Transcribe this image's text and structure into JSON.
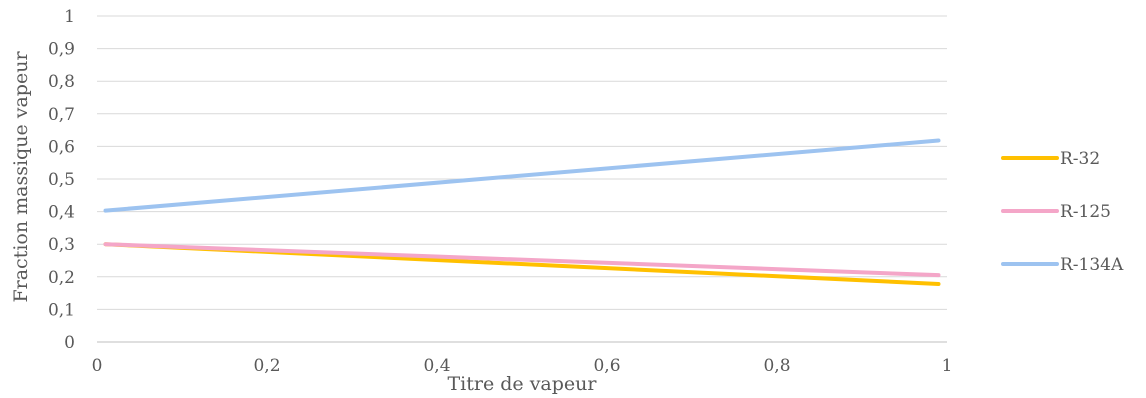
{
  "chart_data": {
    "type": "line",
    "title": "",
    "xlabel": "Titre de vapeur",
    "ylabel": "Fraction massique vapeur",
    "xlim": [
      0,
      1
    ],
    "ylim": [
      0,
      1
    ],
    "x_ticks": [
      "0",
      "0,2",
      "0,4",
      "0,6",
      "0,8",
      "1"
    ],
    "y_ticks": [
      "0",
      "0,1",
      "0,2",
      "0,3",
      "0,4",
      "0,5",
      "0,6",
      "0,7",
      "0,8",
      "0,9",
      "1"
    ],
    "grid": true,
    "legend_position": "right",
    "series": [
      {
        "name": "R-32",
        "color": "#ffc000",
        "x": [
          0.01,
          0.99
        ],
        "y": [
          0.3,
          0.178
        ]
      },
      {
        "name": "R-125",
        "color": "#f4a6c8",
        "x": [
          0.01,
          0.99
        ],
        "y": [
          0.3,
          0.205
        ]
      },
      {
        "name": "R-134A",
        "color": "#9dc3f0",
        "x": [
          0.01,
          0.99
        ],
        "y": [
          0.403,
          0.618
        ]
      }
    ]
  }
}
